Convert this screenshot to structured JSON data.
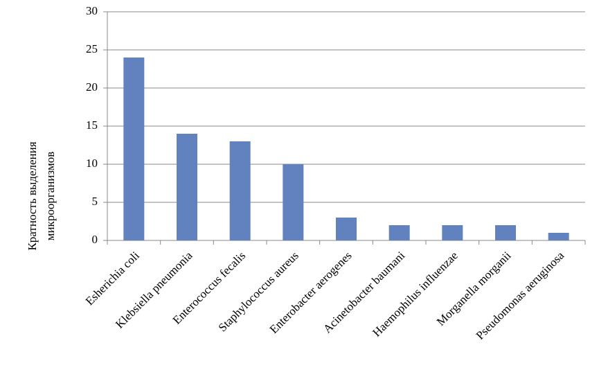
{
  "chart_data": {
    "type": "bar",
    "y_label": [
      "Кратность выделения",
      "микроорганизмов"
    ],
    "categories": [
      "Esherichia coli",
      "Klebsiella pneumonia",
      "Enterococcus fecalis",
      "Staphylococcus aureus",
      "Enterobacter aerogenes",
      "Acinetobacter baumani",
      "Haemophilus influenzae",
      "Morganella morganii",
      "Pseudomonas aeruginosa"
    ],
    "values": [
      24,
      14,
      13,
      10,
      3,
      2,
      2,
      2,
      1
    ],
    "color": "#6182be",
    "ylim": [
      0,
      30
    ],
    "yticks": [
      0,
      5,
      10,
      15,
      20,
      25,
      30
    ],
    "grid": true
  }
}
